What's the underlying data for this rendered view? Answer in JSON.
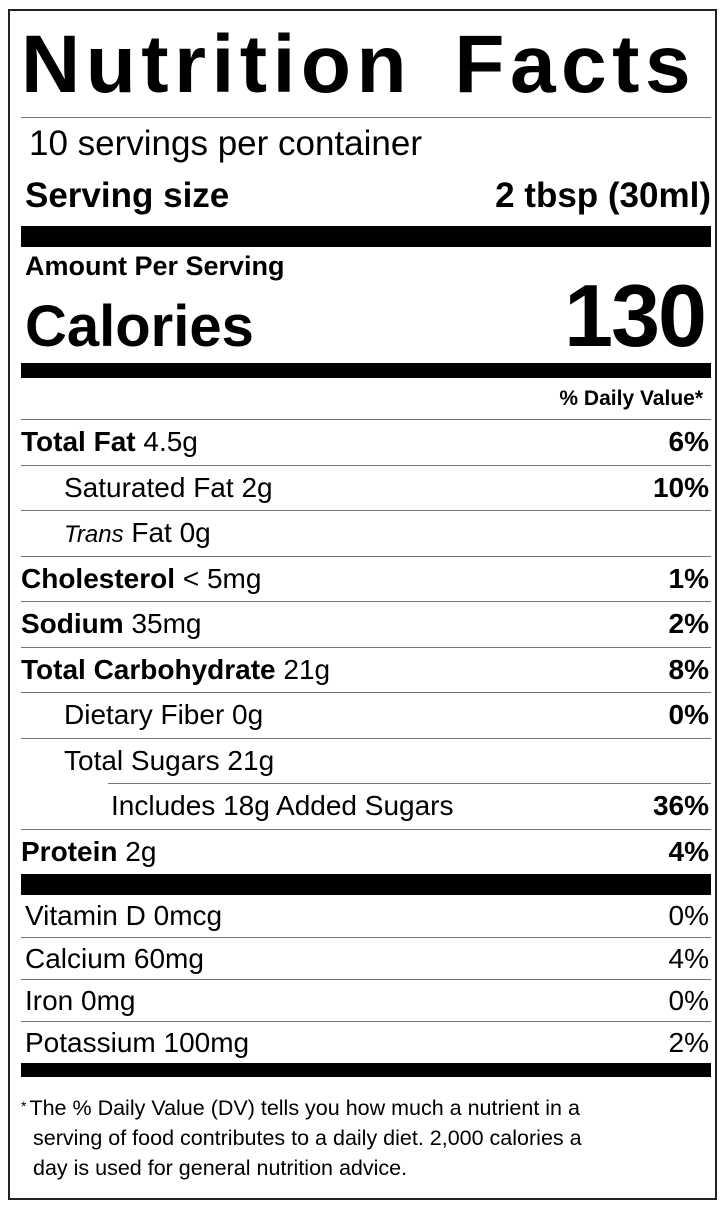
{
  "title": "Nutrition Facts",
  "servings_per_container": "10 servings per container",
  "serving_size": {
    "label": "Serving size",
    "value": "2 tbsp (30ml)"
  },
  "amount_per_serving": "Amount Per Serving",
  "calories": {
    "label": "Calories",
    "value": "130"
  },
  "daily_value_header": "% Daily Value*",
  "nutrients": [
    {
      "name": "Total Fat",
      "amount": "4.5g",
      "dv": "6%"
    },
    {
      "name": "Saturated Fat",
      "amount": "2g",
      "dv": "10%"
    },
    {
      "name_italic": "Trans",
      "name": "Fat",
      "amount": "0g",
      "dv": ""
    },
    {
      "name": "Cholesterol",
      "amount": "< 5mg",
      "dv": "1%"
    },
    {
      "name": "Sodium",
      "amount": "35mg",
      "dv": "2%"
    },
    {
      "name": "Total Carbohydrate",
      "amount": "21g",
      "dv": "8%"
    },
    {
      "name": "Dietary Fiber",
      "amount": "0g",
      "dv": "0%"
    },
    {
      "name": "Total Sugars",
      "amount": "21g",
      "dv": ""
    },
    {
      "name": "Includes 18g Added Sugars",
      "amount": "",
      "dv": "36%"
    },
    {
      "name": "Protein",
      "amount": "2g",
      "dv": "4%"
    }
  ],
  "vitamins": [
    {
      "name": "Vitamin D 0mcg",
      "dv": "0%"
    },
    {
      "name": "Calcium 60mg",
      "dv": "4%"
    },
    {
      "name": "Iron 0mg",
      "dv": "0%"
    },
    {
      "name": "Potassium 100mg",
      "dv": "2%"
    }
  ],
  "footnote": {
    "star": "*",
    "lines": [
      "The % Daily Value (DV) tells you how much a nutrient in a",
      "serving of food contributes to a daily diet. 2,000 calories a",
      "day is used for general nutrition advice."
    ]
  }
}
